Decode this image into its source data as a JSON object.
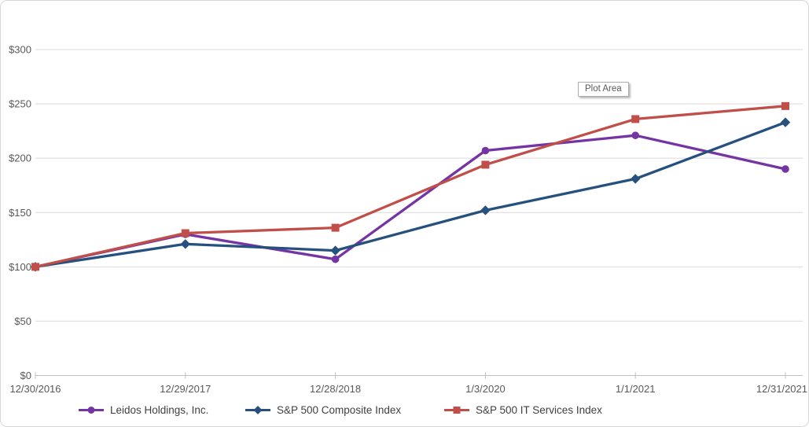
{
  "tooltip": {
    "plot_area_label": "Plot Area"
  },
  "chart_data": {
    "type": "line",
    "title": "",
    "xlabel": "",
    "ylabel": "",
    "y_value_format": "$",
    "ylim": [
      0,
      300
    ],
    "y_tick_step": 50,
    "y_ticks": [
      "$0",
      "$50",
      "$100",
      "$150",
      "$200",
      "$250",
      "$300"
    ],
    "grid": true,
    "legend_position": "bottom",
    "categories": [
      "12/30/2016",
      "12/29/2017",
      "12/28/2018",
      "1/3/2020",
      "1/1/2021",
      "12/31/2021"
    ],
    "series": [
      {
        "name": "Leidos Holdings, Inc.",
        "marker": "circle",
        "color": "#7434A4",
        "values": [
          100,
          130,
          107,
          207,
          221,
          190
        ]
      },
      {
        "name": "S&P 500 Composite Index",
        "marker": "diamond",
        "color": "#26507D",
        "values": [
          100,
          121,
          115,
          152,
          181,
          233
        ]
      },
      {
        "name": "S&P 500 IT Services Index",
        "marker": "square",
        "color": "#C04F4A",
        "values": [
          100,
          131,
          136,
          194,
          236,
          248
        ]
      }
    ],
    "colors": {
      "gridline": "#d9d9d9",
      "axis_line": "#bfbfbf",
      "tick_label": "#595959",
      "legend_text": "#404040"
    }
  }
}
